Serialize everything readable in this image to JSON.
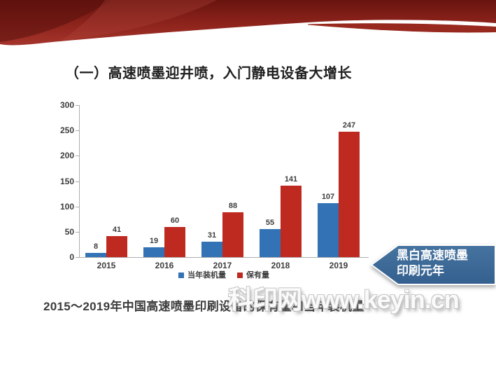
{
  "slide": {
    "title": "（一）高速喷墨迎井喷，入门静电设备大增长",
    "caption": "2015～2019年中国高速喷墨印刷设备的保有量和当年装机量",
    "watermark": "科印网www.keyin.cn",
    "callout": {
      "line1": "黑白高速喷墨",
      "line2": "印刷元年",
      "color": "#3c689c"
    },
    "banner_colors": {
      "dark_red": "#69140f",
      "mid_red": "#8e241c",
      "bright_red": "#a5352c"
    }
  },
  "chart_data": {
    "type": "bar",
    "categories": [
      "2015",
      "2016",
      "2017",
      "2018",
      "2019"
    ],
    "series": [
      {
        "name": "当年装机量",
        "color": "#3272b5",
        "values": [
          8,
          19,
          31,
          55,
          107
        ]
      },
      {
        "name": "保有量",
        "color": "#bf2a20",
        "values": [
          41,
          60,
          88,
          141,
          247
        ]
      }
    ],
    "title": "",
    "xlabel": "",
    "ylabel": "",
    "ylim": [
      0,
      300
    ],
    "yticks": [
      0,
      50,
      100,
      150,
      200,
      250,
      300
    ],
    "grid": false,
    "legend_position": "bottom",
    "data_labels": true
  }
}
